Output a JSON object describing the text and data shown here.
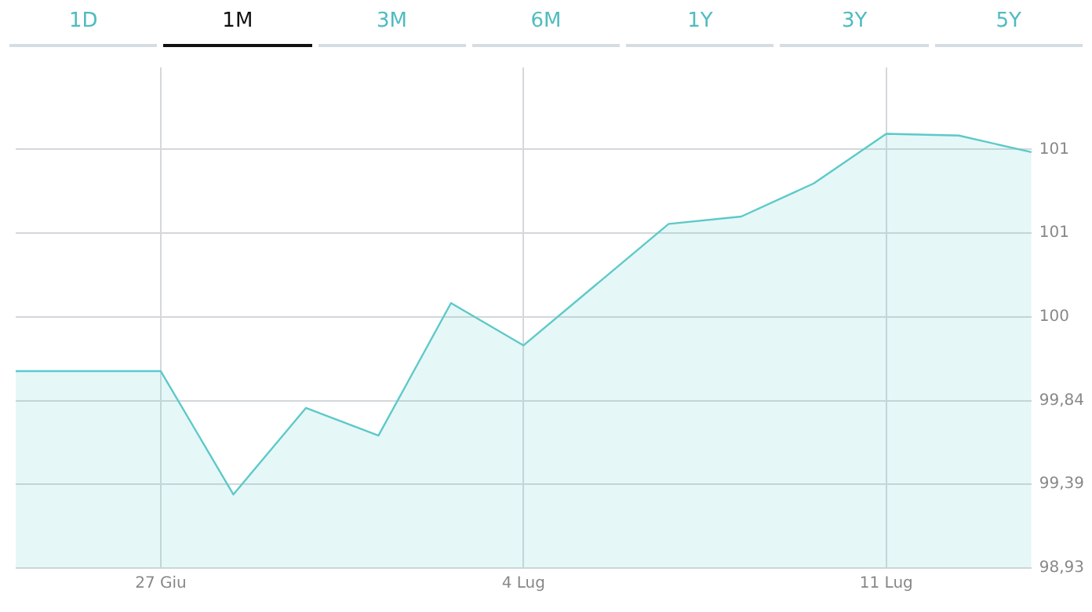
{
  "chart_data": {
    "type": "area",
    "annotations": [
      "1D",
      "1M",
      "3M",
      "6M",
      "1Y",
      "3Y",
      "5Y"
    ],
    "categories": [
      null,
      null,
      "27 Giu",
      null,
      null,
      null,
      null,
      "4 Lug",
      null,
      null,
      null,
      null,
      "11 Lug",
      null,
      null
    ],
    "series": [
      {
        "color": "#5ec9c9",
        "values": [
          100.0,
          100.0,
          100.0,
          99.33,
          99.8,
          99.65,
          100.37,
          100.14,
          100.47,
          100.8,
          100.84,
          101.02,
          101.29,
          101.28,
          101.19
        ]
      }
    ],
    "ylim": [
      98.93,
      101.65
    ],
    "yticks": [
      {
        "value": 98.93,
        "label": "98,93"
      },
      {
        "value": 99.385,
        "label": "99,39"
      },
      {
        "value": 99.84,
        "label": "99,84"
      },
      {
        "value": 100.295,
        "label": "100"
      },
      {
        "value": 100.75,
        "label": "101"
      },
      {
        "value": 101.205,
        "label": "101"
      }
    ],
    "grid": true,
    "legend": false,
    "marker": "none"
  }
}
